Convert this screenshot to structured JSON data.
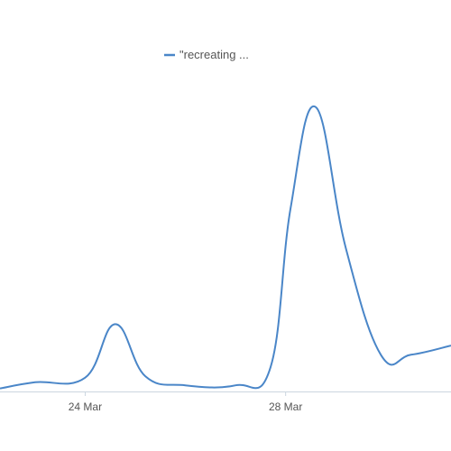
{
  "chart_data": {
    "type": "line",
    "title": "",
    "xlabel": "",
    "ylabel": "",
    "x_ticks": [
      {
        "label": "24 Mar",
        "date": "2023-03-24"
      },
      {
        "label": "28 Mar",
        "date": "2023-03-28"
      }
    ],
    "xlim": [
      "2023-03-22.3",
      "2023-03-31.3"
    ],
    "ylim": [
      0,
      100
    ],
    "grid": false,
    "legend": {
      "placement": "top-center"
    },
    "series": [
      {
        "name": "\"recreating ...",
        "color": "#4a86c8",
        "points": [
          {
            "x": "2023-03-22.3",
            "y": 1
          },
          {
            "x": "2023-03-23.0",
            "y": 3
          },
          {
            "x": "2023-03-24.0",
            "y": 4.5
          },
          {
            "x": "2023-03-24.6",
            "y": 22
          },
          {
            "x": "2023-03-25.2",
            "y": 5
          },
          {
            "x": "2023-03-26.0",
            "y": 2
          },
          {
            "x": "2023-03-27.0",
            "y": 2
          },
          {
            "x": "2023-03-27.7",
            "y": 8
          },
          {
            "x": "2023-03-28.1",
            "y": 60
          },
          {
            "x": "2023-03-28.6",
            "y": 93
          },
          {
            "x": "2023-03-29.2",
            "y": 47
          },
          {
            "x": "2023-03-29.9",
            "y": 12
          },
          {
            "x": "2023-03-30.5",
            "y": 12
          },
          {
            "x": "2023-03-31.3",
            "y": 15
          }
        ]
      }
    ]
  }
}
